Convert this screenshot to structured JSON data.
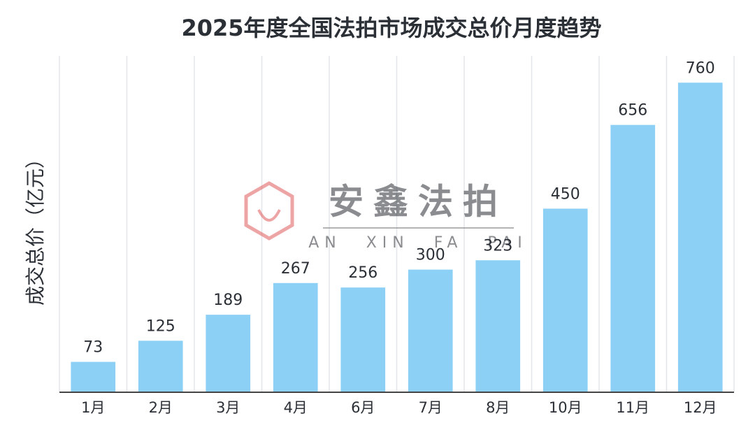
{
  "chart_data": {
    "type": "bar",
    "title": "2025年度全国法拍市场成交总价月度趋势",
    "y_label": "成交总价（亿元）",
    "categories": [
      "1月",
      "2月",
      "3月",
      "4月",
      "6月",
      "7月",
      "8月",
      "10月",
      "11月",
      "12月"
    ],
    "values": [
      73,
      125,
      189,
      267,
      256,
      300,
      323,
      450,
      656,
      760
    ],
    "color": "#8dd0f6",
    "ylim": [
      0,
      800
    ]
  },
  "watermark": {
    "title": "安鑫法拍",
    "subtitle": "AN XIN FA PAI"
  }
}
